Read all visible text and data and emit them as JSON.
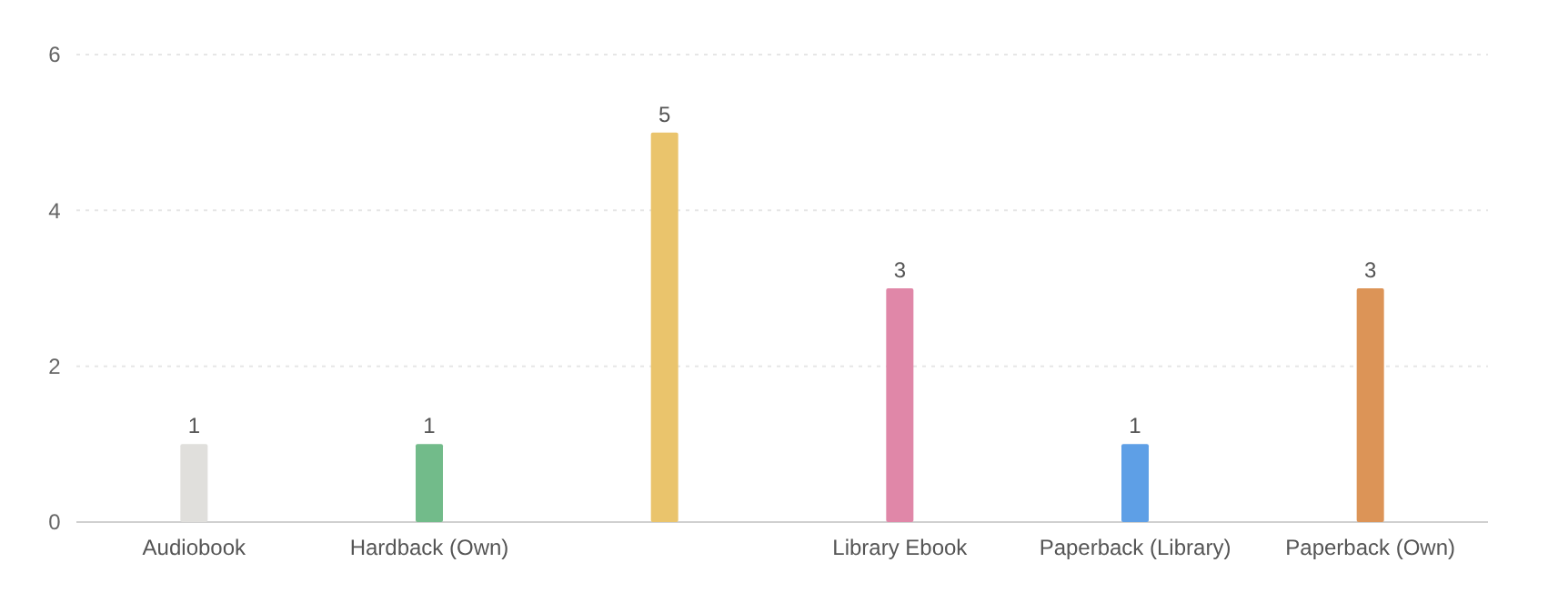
{
  "chart_data": {
    "type": "bar",
    "categories": [
      "Audiobook",
      "Hardback (Own)",
      null,
      "Library Ebook",
      "Paperback (Library)",
      "Paperback (Own)"
    ],
    "values": [
      1,
      1,
      5,
      3,
      1,
      3
    ],
    "colors": [
      "#e0dfdc",
      "#72bb8a",
      "#eac46c",
      "#e087a8",
      "#5e9fe6",
      "#dc9457"
    ],
    "ylim": [
      0,
      6
    ],
    "yticks": [
      0,
      2,
      4,
      6
    ],
    "grid": "y",
    "data_labels": true
  }
}
